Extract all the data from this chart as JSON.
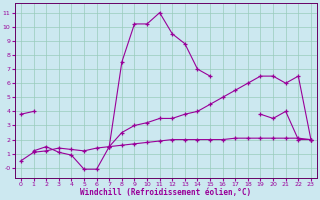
{
  "xlabel": "Windchill (Refroidissement éolien,°C)",
  "bg_color": "#cce8f0",
  "grid_color": "#99ccbb",
  "line_color": "#990099",
  "spine_color": "#660066",
  "figsize": [
    3.2,
    2.0
  ],
  "dpi": 100,
  "xlim": [
    -0.5,
    23.5
  ],
  "ylim": [
    -0.7,
    11.7
  ],
  "xticks": [
    0,
    1,
    2,
    3,
    4,
    5,
    6,
    7,
    8,
    9,
    10,
    11,
    12,
    13,
    14,
    15,
    16,
    17,
    18,
    19,
    20,
    21,
    22,
    23
  ],
  "yticks": [
    0,
    1,
    2,
    3,
    4,
    5,
    6,
    7,
    8,
    9,
    10,
    11
  ],
  "ytick_labels": [
    "-0",
    "1",
    "2",
    "3",
    "4",
    "5",
    "6",
    "7",
    "8",
    "9",
    "10",
    "11"
  ],
  "tick_fontsize": 4.5,
  "xlabel_fontsize": 5.5,
  "series": [
    {
      "segments": [
        {
          "x": [
            0,
            1
          ],
          "y": [
            3.8,
            4.0
          ]
        },
        {
          "x": [
            19,
            20,
            21,
            22,
            23
          ],
          "y": [
            3.8,
            3.5,
            4.0,
            2.0,
            2.0
          ]
        }
      ]
    },
    {
      "segments": [
        {
          "x": [
            1,
            2,
            3,
            4,
            5,
            6,
            7,
            8,
            9,
            10,
            11,
            12,
            13,
            14,
            15
          ],
          "y": [
            1.2,
            1.5,
            1.1,
            0.9,
            -0.1,
            -0.1,
            1.5,
            7.5,
            10.2,
            10.2,
            11.0,
            9.5,
            8.8,
            7.0,
            6.5
          ]
        }
      ]
    },
    {
      "segments": [
        {
          "x": [
            7,
            8,
            9,
            10,
            11,
            12,
            13,
            14,
            15,
            16,
            17,
            18,
            19,
            20,
            21,
            22,
            23
          ],
          "y": [
            1.5,
            2.5,
            3.0,
            3.2,
            3.5,
            3.5,
            3.8,
            4.0,
            4.5,
            5.0,
            5.5,
            6.0,
            6.5,
            6.5,
            6.0,
            6.5,
            2.0
          ]
        }
      ]
    },
    {
      "segments": [
        {
          "x": [
            0,
            1,
            2,
            3,
            4,
            5,
            6,
            7,
            8,
            9,
            10,
            11,
            12,
            13,
            14,
            15,
            16,
            17,
            18,
            19,
            20,
            21,
            22,
            23
          ],
          "y": [
            0.5,
            1.1,
            1.2,
            1.4,
            1.3,
            1.2,
            1.4,
            1.5,
            1.6,
            1.7,
            1.8,
            1.9,
            2.0,
            2.0,
            2.0,
            2.0,
            2.0,
            2.1,
            2.1,
            2.1,
            2.1,
            2.1,
            2.1,
            2.0
          ]
        }
      ]
    }
  ]
}
